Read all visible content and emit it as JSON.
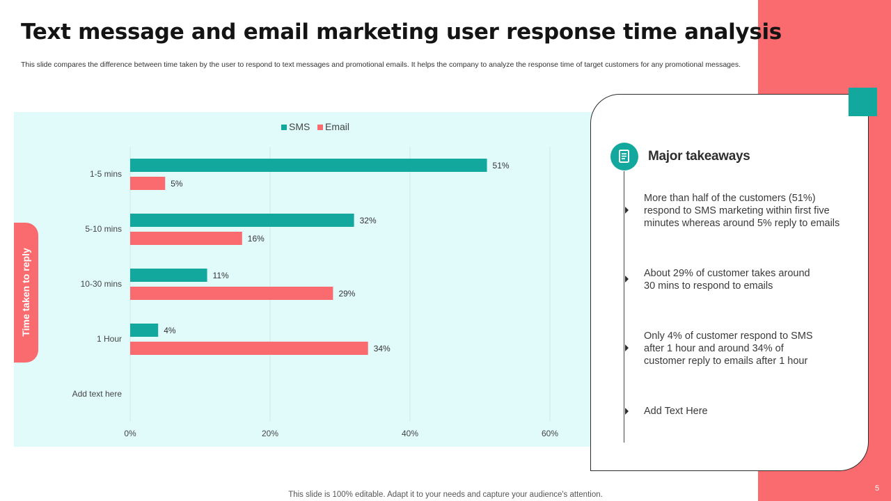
{
  "title": "Text message and email marketing user response time analysis",
  "subtitle": "This slide compares the difference between time taken by the user to respond to text  messages and promotional emails. It helps the company to analyze  the response time of target customers for any  promotional messages.",
  "colors": {
    "sms": "#12a89d",
    "email": "#f96b6e",
    "accent_band": "#f96b6e",
    "chart_bg": "#e1fbfb"
  },
  "chart_data": {
    "type": "bar",
    "orientation": "horizontal",
    "categories": [
      "1-5 mins",
      "5-10 mins",
      "10-30 mins",
      "1 Hour",
      "Add text here"
    ],
    "series": [
      {
        "name": "SMS",
        "values": [
          51,
          32,
          11,
          4,
          null
        ],
        "labels": [
          "51%",
          "32%",
          "11%",
          "4%",
          ""
        ]
      },
      {
        "name": "Email",
        "values": [
          5,
          16,
          29,
          34,
          null
        ],
        "labels": [
          "5%",
          "16%",
          "29%",
          "34%",
          ""
        ]
      }
    ],
    "xlim": [
      0,
      60
    ],
    "xticks": [
      0,
      20,
      40,
      60
    ],
    "xtick_labels": [
      "0%",
      "20%",
      "40%",
      "60%"
    ],
    "ylabel": "Time taken to reply",
    "legend_position": "top"
  },
  "takeaways": {
    "heading": "Major takeaways",
    "icon": "document-icon",
    "items": [
      {
        "lines": [
          "More than half of the customers (51%)",
          "respond to SMS marketing within first five",
          "minutes whereas around 5% reply to emails"
        ]
      },
      {
        "lines": [
          "About 29% of customer takes around",
          "30 mins to respond to emails"
        ]
      },
      {
        "lines": [
          "Only 4% of customer respond to SMS",
          "after 1 hour and around 34% of",
          "customer reply to emails after 1 hour"
        ]
      },
      {
        "lines": [
          "Add Text Here"
        ]
      }
    ]
  },
  "footer": "This slide is 100% editable. Adapt it to your needs and capture your audience's attention.",
  "page_number": "5"
}
